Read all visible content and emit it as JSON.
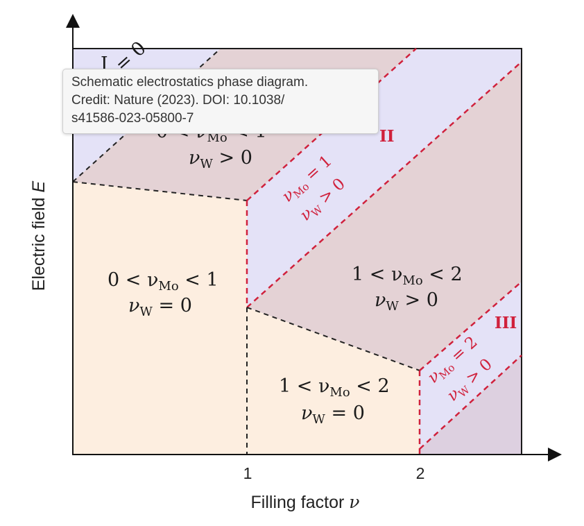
{
  "axes": {
    "y_title": "Electric field ",
    "y_title_var": "E",
    "x_title": "Filling factor ",
    "x_title_var": "ν",
    "x_ticks": [
      "1",
      "2"
    ]
  },
  "regions": {
    "top_left_roman": "I",
    "top_left_partial": "= 0",
    "top_mid_line1": "0 < ν",
    "top_mid_line1_sub": "Mo",
    "top_mid_line1_end": " < 1",
    "top_mid_line2": "ν",
    "top_mid_line2_sub": "W",
    "top_mid_line2_end": " > 0",
    "left_line1": "0 < ν",
    "left_line1_sub": "Mo",
    "left_line1_end": " < 1",
    "left_line2": "ν",
    "left_line2_sub": "W",
    "left_line2_end": " = 0",
    "right_line1": "1 < ν",
    "right_line1_sub": "Mo",
    "right_line1_end": " < 2",
    "right_line2": "ν",
    "right_line2_sub": "W",
    "right_line2_end": " > 0",
    "bottom_line1": "1 < ν",
    "bottom_line1_sub": "Mo",
    "bottom_line1_end": " < 2",
    "bottom_line2": "ν",
    "bottom_line2_sub": "W",
    "bottom_line2_end": " = 0",
    "band_ii_roman": "II",
    "band_ii_line1": "ν",
    "band_ii_line1_sub": "Mo",
    "band_ii_line1_end": " = 1",
    "band_ii_line2": "ν",
    "band_ii_line2_sub": "W",
    "band_ii_line2_end": " > 0",
    "band_iii_roman": "III",
    "band_iii_line1": "ν",
    "band_iii_line1_sub": "Mo",
    "band_iii_line1_end": " = 2",
    "band_iii_line2": "ν",
    "band_iii_line2_sub": "W",
    "band_iii_line2_end": " > 0"
  },
  "tooltip": {
    "line1": "Schematic electrostatics phase diagram.",
    "line2": "Credit: Nature (2023). DOI: 10.1038/",
    "line3": "s41586-023-05800-7"
  },
  "colors": {
    "peach": "#fdeee0",
    "lavender": "#e4e2f7",
    "mauve": "#e4d2d5",
    "bottom_right_mauve": "#ddd0e0",
    "red_dash": "#d0213c",
    "black_dash": "#222222"
  }
}
